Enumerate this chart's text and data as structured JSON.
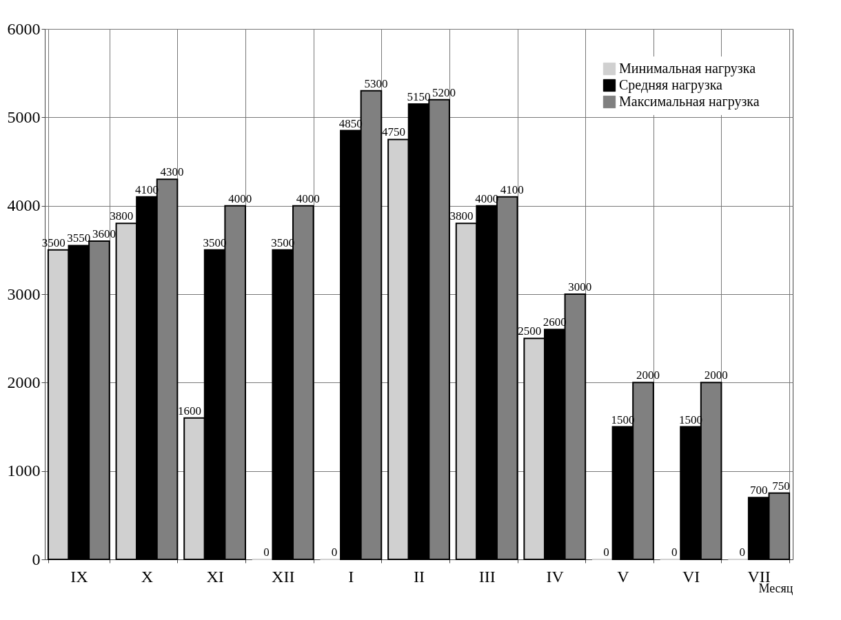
{
  "chart_data": {
    "type": "bar",
    "xlabel": "Месяц",
    "categories": [
      "IX",
      "X",
      "XI",
      "XII",
      "I",
      "II",
      "III",
      "IV",
      "V",
      "VI",
      "VII"
    ],
    "series": [
      {
        "name": "Минимальная нагрузка",
        "color": "#d0d0d0",
        "values": [
          3500,
          3800,
          1600,
          0,
          0,
          4750,
          3800,
          2500,
          0,
          0,
          0
        ]
      },
      {
        "name": "Средняя нагрузка",
        "color": "#000000",
        "values": [
          3550,
          4100,
          3500,
          3500,
          4850,
          5150,
          4000,
          2600,
          1500,
          1500,
          700
        ]
      },
      {
        "name": "Максимальная нагрузка",
        "color": "#808080",
        "values": [
          3600,
          4300,
          4000,
          4000,
          5300,
          5200,
          4100,
          3000,
          2000,
          2000,
          750
        ]
      }
    ],
    "ylim": [
      0,
      6000
    ],
    "yticks": [
      0,
      1000,
      2000,
      3000,
      4000,
      5000,
      6000
    ],
    "grid": true,
    "legend": "top right",
    "data_labels": true
  }
}
